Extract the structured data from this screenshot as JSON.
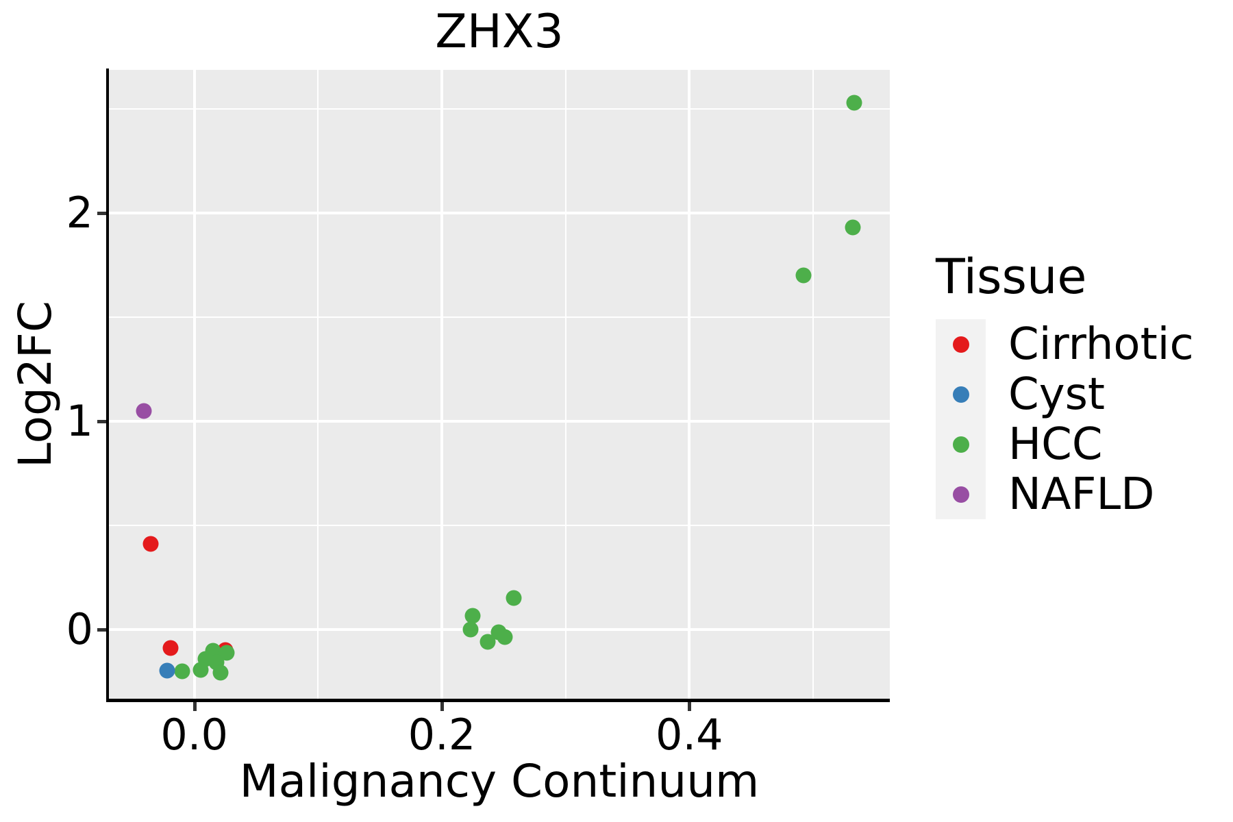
{
  "figure": {
    "background": "#ffffff",
    "panel_background": "#EBEBEB",
    "grid_color": "#FFFFFF",
    "spine_color": "#000000",
    "tick_color": "#333333"
  },
  "chart_data": {
    "type": "scatter",
    "title": "ZHX3",
    "xlabel": "Malignancy Continuum",
    "ylabel": "Log2FC",
    "xlim": [
      -0.069,
      0.562
    ],
    "ylim": [
      -0.332,
      2.687
    ],
    "grid": "on",
    "legend_position": "right",
    "x_ticks": {
      "values": [
        0.0,
        0.2,
        0.4
      ],
      "labels": [
        "0.0",
        "0.2",
        "0.4"
      ]
    },
    "y_ticks": {
      "values": [
        0,
        1,
        2
      ],
      "labels": [
        "0",
        "1",
        "2"
      ]
    },
    "x_minor_gridlines": [
      0.1,
      0.3,
      0.5
    ],
    "y_minor_gridlines": [
      0.5,
      1.5,
      2.5
    ],
    "legend": {
      "title": "Tissue",
      "entries": [
        {
          "label": "Cirrhotic",
          "color": "#E41A1C"
        },
        {
          "label": "Cyst",
          "color": "#377EB8"
        },
        {
          "label": "HCC",
          "color": "#4DAF4A"
        },
        {
          "label": "NAFLD",
          "color": "#984EA3"
        }
      ]
    },
    "marker_diameter_px": 23,
    "points": [
      {
        "x": 0.025,
        "y": -0.1,
        "tissue": "Cirrhotic"
      },
      {
        "x": 0.015,
        "y": -0.102,
        "tissue": "HCC"
      },
      {
        "x": 0.026,
        "y": -0.113,
        "tissue": "HCC"
      },
      {
        "x": 0.009,
        "y": -0.14,
        "tissue": "HCC"
      },
      {
        "x": 0.018,
        "y": -0.157,
        "tissue": "HCC"
      },
      {
        "x": 0.005,
        "y": -0.195,
        "tissue": "HCC"
      },
      {
        "x": 0.021,
        "y": -0.206,
        "tissue": "HCC"
      },
      {
        "x": -0.01,
        "y": -0.202,
        "tissue": "HCC"
      },
      {
        "x": -0.022,
        "y": -0.198,
        "tissue": "Cyst"
      },
      {
        "x": -0.019,
        "y": -0.089,
        "tissue": "Cirrhotic"
      },
      {
        "x": -0.035,
        "y": 0.41,
        "tissue": "Cirrhotic"
      },
      {
        "x": -0.041,
        "y": 1.05,
        "tissue": "NAFLD"
      },
      {
        "x": 0.225,
        "y": 0.065,
        "tissue": "HCC"
      },
      {
        "x": 0.223,
        "y": 0.0,
        "tissue": "HCC"
      },
      {
        "x": 0.237,
        "y": -0.058,
        "tissue": "HCC"
      },
      {
        "x": 0.246,
        "y": -0.014,
        "tissue": "HCC"
      },
      {
        "x": 0.251,
        "y": -0.036,
        "tissue": "HCC"
      },
      {
        "x": 0.258,
        "y": 0.15,
        "tissue": "HCC"
      },
      {
        "x": 0.492,
        "y": 1.7,
        "tissue": "HCC"
      },
      {
        "x": 0.532,
        "y": 1.93,
        "tissue": "HCC"
      },
      {
        "x": 0.533,
        "y": 2.53,
        "tissue": "HCC"
      }
    ]
  }
}
